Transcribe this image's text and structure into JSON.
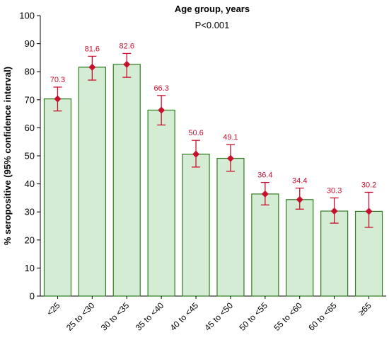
{
  "chart_data": {
    "type": "bar",
    "title": "Age group, years",
    "subtitle": "P<0.001",
    "xlabel": "",
    "ylabel": "% seropositive (95% confidence interval)",
    "ylim": [
      0,
      100
    ],
    "yticks": [
      0,
      10,
      20,
      30,
      40,
      50,
      60,
      70,
      80,
      90,
      100
    ],
    "categories": [
      "<25",
      "25 to <30",
      "30 to <35",
      "35 to <40",
      "40 to <45",
      "45 to <50",
      "50 to <55",
      "55 to <60",
      "60 to <65",
      "≥65"
    ],
    "values": [
      70.3,
      81.6,
      82.6,
      66.3,
      50.6,
      49.1,
      36.4,
      34.4,
      30.3,
      30.2
    ],
    "value_labels": [
      "70.3",
      "81.6",
      "82.6",
      "66.3",
      "50.6",
      "49.1",
      "36.4",
      "34.4",
      "30.3",
      "30.2"
    ],
    "ci_lower": [
      66.0,
      77.0,
      78.0,
      61.0,
      46.0,
      44.5,
      32.5,
      31.0,
      26.0,
      24.5
    ],
    "ci_upper": [
      74.5,
      85.5,
      86.5,
      71.5,
      55.5,
      54.0,
      40.5,
      38.5,
      35.0,
      37.0
    ],
    "grid": false,
    "colors": {
      "bar_fill": "#d4ecd4",
      "bar_stroke": "#2e7d1f",
      "marker": "#c8102e"
    }
  }
}
